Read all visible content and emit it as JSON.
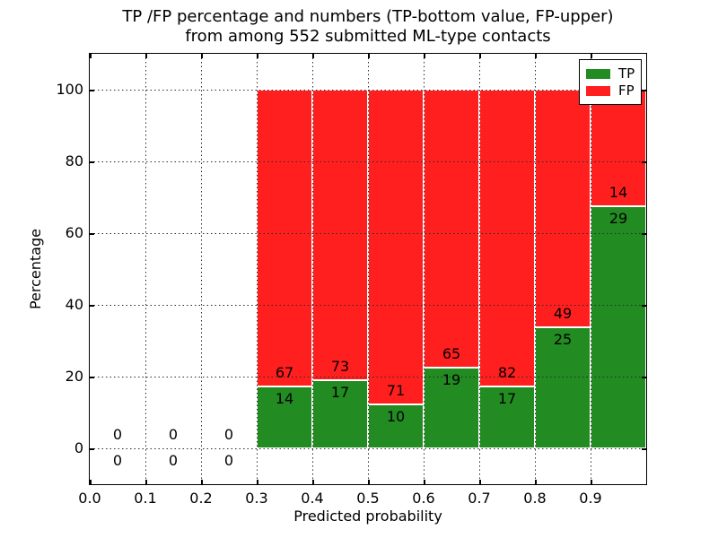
{
  "title": {
    "line1": "TP /FP percentage and numbers (TP-bottom value, FP-upper)",
    "line2": "from among 552 submitted ML-type contacts"
  },
  "chart_data": {
    "type": "bar",
    "stacked": true,
    "title": "TP /FP percentage and numbers (TP-bottom value, FP-upper) from among 552 submitted ML-type contacts",
    "xlabel": "Predicted probability",
    "ylabel": "Percentage",
    "xlim": [
      0.0,
      1.0
    ],
    "ylim": [
      -10,
      110
    ],
    "xtick_labels": [
      "0.0",
      "0.1",
      "0.2",
      "0.3",
      "0.4",
      "0.5",
      "0.6",
      "0.7",
      "0.8",
      "0.9"
    ],
    "ytick_labels": [
      "0",
      "20",
      "40",
      "60",
      "80",
      "100"
    ],
    "grid": "dotted",
    "bin_width": 0.1,
    "bin_starts": [
      0.0,
      0.1,
      0.2,
      0.3,
      0.4,
      0.5,
      0.6,
      0.7,
      0.8,
      0.9
    ],
    "series": [
      {
        "name": "TP",
        "color": "#228b22",
        "counts": [
          0,
          0,
          0,
          14,
          17,
          10,
          19,
          17,
          25,
          29
        ]
      },
      {
        "name": "FP",
        "color": "#ff1f1f",
        "counts": [
          0,
          0,
          0,
          67,
          73,
          71,
          65,
          82,
          49,
          14
        ]
      }
    ],
    "total_contacts": 552,
    "bar_unit": "percent of bin (TP+FP stack to 100)",
    "legend": {
      "position": "upper right",
      "entries": [
        "TP",
        "FP"
      ]
    }
  },
  "colors": {
    "tp": "#228b22",
    "fp": "#ff1f1f",
    "grid": "#2b2b2b",
    "spine": "#000000",
    "background": "#ffffff"
  }
}
